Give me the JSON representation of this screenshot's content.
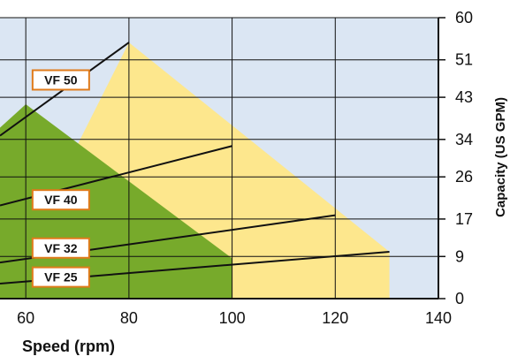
{
  "chart_data": {
    "type": "area",
    "xlabel": "Speed (rpm)",
    "ylabel": "Capacity (US GPM)",
    "x_ticks": [
      60,
      80,
      100,
      120,
      140
    ],
    "y_ticks": [
      0,
      9,
      17,
      26,
      34,
      43,
      51,
      60
    ],
    "xlim": [
      55,
      140
    ],
    "ylim": [
      0,
      60
    ],
    "grid": true,
    "colors": {
      "plot_background": "#dbe6f3",
      "yellow_region": "#fde78d",
      "green_region": "#77aa2b",
      "label_border": "#e07b1b",
      "line": "#111111"
    },
    "regions": [
      {
        "color": "yellow",
        "boundary": [
          {
            "x": 80,
            "y": 54.7
          },
          {
            "x": 130.5,
            "y": 10
          },
          {
            "x": 130.5,
            "y": 0
          }
        ]
      },
      {
        "color": "green",
        "boundary": [
          {
            "x": 55,
            "y": 36.5
          },
          {
            "x": 60,
            "y": 41.5
          },
          {
            "x": 100,
            "y": 8.6
          },
          {
            "x": 100,
            "y": 0
          }
        ]
      }
    ],
    "series": [
      {
        "name": "VF 50",
        "points": [
          {
            "x": 55,
            "y": 34.8
          },
          {
            "x": 80,
            "y": 54.7
          }
        ]
      },
      {
        "name": "VF 40",
        "points": [
          {
            "x": 55,
            "y": 19.9
          },
          {
            "x": 100,
            "y": 32.6
          }
        ]
      },
      {
        "name": "VF 32",
        "points": [
          {
            "x": 55,
            "y": 7.7
          },
          {
            "x": 120,
            "y": 17.8
          }
        ]
      },
      {
        "name": "VF 25",
        "points": [
          {
            "x": 55,
            "y": 3.2
          },
          {
            "x": 130.5,
            "y": 10.0
          }
        ]
      }
    ],
    "label_positions": [
      {
        "series": "VF 50",
        "x": 66.8,
        "y": 46.7
      },
      {
        "series": "VF 40",
        "x": 66.8,
        "y": 21.1
      },
      {
        "series": "VF 32",
        "x": 66.8,
        "y": 10.8
      },
      {
        "series": "VF 25",
        "x": 66.8,
        "y": 4.6
      }
    ]
  }
}
